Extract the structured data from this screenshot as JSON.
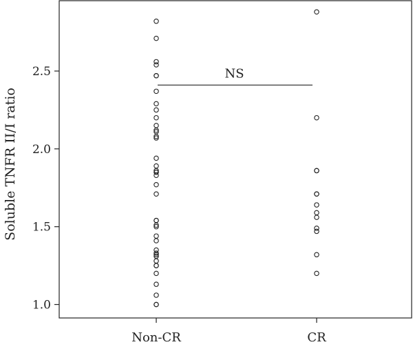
{
  "chart_data": {
    "type": "scatter",
    "title": "",
    "xlabel": "",
    "ylabel": "Soluble TNFR II/I ratio",
    "ylim": [
      0.95,
      2.9
    ],
    "yticks": [
      1.0,
      1.5,
      2.0,
      2.5
    ],
    "ytick_labels": [
      "1.0",
      "1.5",
      "2.0",
      "2.5"
    ],
    "categories": [
      "Non-CR",
      "CR"
    ],
    "grid": false,
    "series": [
      {
        "category": "Non-CR",
        "values": [
          2.82,
          2.71,
          2.56,
          2.54,
          2.47,
          2.47,
          2.37,
          2.29,
          2.25,
          2.2,
          2.15,
          2.12,
          2.11,
          2.08,
          2.07,
          1.94,
          1.89,
          1.86,
          1.85,
          1.85,
          1.83,
          1.77,
          1.71,
          1.54,
          1.54,
          1.51,
          1.5,
          1.44,
          1.41,
          1.35,
          1.33,
          1.32,
          1.31,
          1.28,
          1.25,
          1.25,
          1.2,
          1.13,
          1.06,
          1.0,
          1.0
        ]
      },
      {
        "category": "CR",
        "values": [
          2.88,
          2.2,
          1.86,
          1.86,
          1.71,
          1.71,
          1.64,
          1.59,
          1.56,
          1.49,
          1.47,
          1.32,
          1.2
        ]
      }
    ],
    "annotation": {
      "label": "NS",
      "y": 2.41,
      "from": "Non-CR",
      "to": "CR"
    },
    "colors": {
      "point": "#222222",
      "axis": "#222222"
    }
  }
}
